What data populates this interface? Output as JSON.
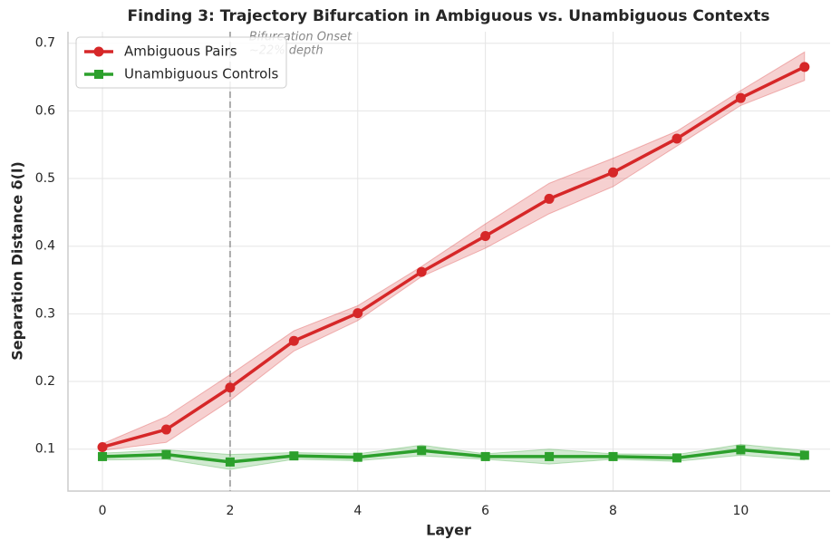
{
  "chart_data": {
    "type": "line",
    "title": "Finding 3: Trajectory Bifurcation in Ambiguous vs. Unambiguous Contexts",
    "xlabel": "Layer",
    "ylabel": "Separation Distance δ(l)",
    "x": [
      0,
      1,
      2,
      3,
      4,
      5,
      6,
      7,
      8,
      9,
      10,
      11
    ],
    "series": [
      {
        "name": "Ambiguous Pairs",
        "color": "#d62728",
        "marker": "circle",
        "values": [
          0.103,
          0.129,
          0.191,
          0.26,
          0.301,
          0.362,
          0.415,
          0.47,
          0.509,
          0.559,
          0.619,
          0.665
        ],
        "lower": [
          0.098,
          0.11,
          0.172,
          0.245,
          0.29,
          0.355,
          0.397,
          0.448,
          0.488,
          0.548,
          0.608,
          0.645
        ],
        "upper": [
          0.108,
          0.148,
          0.21,
          0.275,
          0.312,
          0.37,
          0.433,
          0.493,
          0.53,
          0.57,
          0.63,
          0.687
        ]
      },
      {
        "name": "Unambiguous Controls",
        "color": "#2ca02c",
        "marker": "square",
        "values": [
          0.089,
          0.092,
          0.081,
          0.09,
          0.088,
          0.098,
          0.089,
          0.089,
          0.089,
          0.087,
          0.099,
          0.091
        ],
        "lower": [
          0.084,
          0.085,
          0.07,
          0.085,
          0.083,
          0.09,
          0.085,
          0.078,
          0.085,
          0.082,
          0.091,
          0.084
        ],
        "upper": [
          0.094,
          0.099,
          0.092,
          0.095,
          0.093,
          0.106,
          0.093,
          0.1,
          0.093,
          0.092,
          0.107,
          0.098
        ]
      }
    ],
    "vline": {
      "x": 2,
      "label": "Bifurcation Onset",
      "sublabel": "~22% depth"
    },
    "xlim": [
      -0.54,
      11.4
    ],
    "ylim": [
      0.038,
      0.717
    ],
    "xticks": [
      0,
      2,
      4,
      6,
      8,
      10
    ],
    "yticks": [
      0.1,
      0.2,
      0.3,
      0.4,
      0.5,
      0.6,
      0.7
    ],
    "grid": true,
    "legend": "upper left"
  }
}
